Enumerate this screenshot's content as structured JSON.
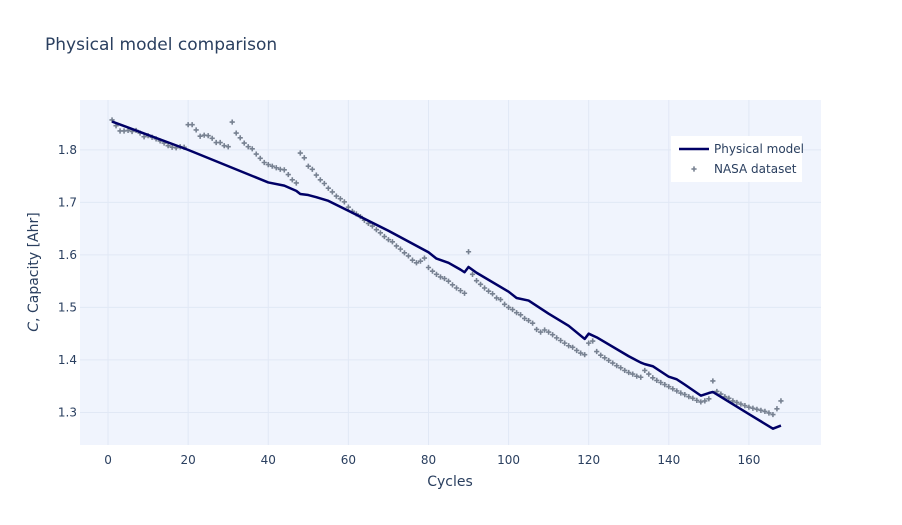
{
  "chart_data": {
    "type": "line",
    "title": "Physical model comparison",
    "xlabel": "Cycles",
    "ylabel_italic": "C",
    "ylabel_rest": ", Capacity [Ahr]",
    "xlim": [
      -7,
      178
    ],
    "ylim": [
      1.238,
      1.895
    ],
    "xticks": [
      0,
      20,
      40,
      60,
      80,
      100,
      120,
      140,
      160
    ],
    "yticks": [
      1.3,
      1.4,
      1.5,
      1.6,
      1.7,
      1.8
    ],
    "ytick_labels": [
      "1.3",
      "1.4",
      "1.5",
      "1.6",
      "1.7",
      "1.8"
    ],
    "colors": {
      "model": "#000066",
      "nasa": "#778191",
      "plot_bg": "#f0f4fd",
      "grid": "#e1e8f5"
    },
    "series": [
      {
        "name": "Physical model",
        "mode": "line",
        "x": [
          1,
          20,
          40,
          44,
          47,
          48,
          50,
          52,
          55,
          60,
          70,
          80,
          82,
          85,
          88,
          89,
          90,
          92,
          100,
          102,
          105,
          110,
          115,
          119,
          120,
          122,
          130,
          133,
          134,
          136,
          140,
          142,
          144,
          148,
          150,
          151,
          160,
          166,
          168
        ],
        "y": [
          1.854,
          1.8,
          1.738,
          1.732,
          1.722,
          1.716,
          1.714,
          1.71,
          1.703,
          1.684,
          1.646,
          1.605,
          1.593,
          1.585,
          1.572,
          1.567,
          1.577,
          1.566,
          1.53,
          1.518,
          1.513,
          1.488,
          1.465,
          1.44,
          1.45,
          1.443,
          1.407,
          1.395,
          1.392,
          1.388,
          1.368,
          1.363,
          1.353,
          1.332,
          1.337,
          1.339,
          1.297,
          1.269,
          1.275
        ]
      },
      {
        "name": "NASA dataset",
        "mode": "markers",
        "x": [
          1,
          2,
          3,
          4,
          5,
          6,
          7,
          8,
          9,
          10,
          11,
          12,
          13,
          14,
          15,
          16,
          17,
          18,
          19,
          20,
          21,
          22,
          23,
          24,
          25,
          26,
          27,
          28,
          29,
          30,
          31,
          32,
          33,
          34,
          35,
          36,
          37,
          38,
          39,
          40,
          41,
          42,
          43,
          44,
          45,
          46,
          47,
          48,
          49,
          50,
          51,
          52,
          53,
          54,
          55,
          56,
          57,
          58,
          59,
          60,
          61,
          62,
          63,
          64,
          65,
          66,
          67,
          68,
          69,
          70,
          71,
          72,
          73,
          74,
          75,
          76,
          77,
          78,
          79,
          80,
          81,
          82,
          83,
          84,
          85,
          86,
          87,
          88,
          89,
          90,
          91,
          92,
          93,
          94,
          95,
          96,
          97,
          98,
          99,
          100,
          101,
          102,
          103,
          104,
          105,
          106,
          107,
          108,
          109,
          110,
          111,
          112,
          113,
          114,
          115,
          116,
          117,
          118,
          119,
          120,
          121,
          122,
          123,
          124,
          125,
          126,
          127,
          128,
          129,
          130,
          131,
          132,
          133,
          134,
          135,
          136,
          137,
          138,
          139,
          140,
          141,
          142,
          143,
          144,
          145,
          146,
          147,
          148,
          149,
          150,
          151,
          152,
          153,
          154,
          155,
          156,
          157,
          158,
          159,
          160,
          161,
          162,
          163,
          164,
          165,
          166,
          167,
          168
        ],
        "y": [
          1.857,
          1.846,
          1.836,
          1.836,
          1.837,
          1.835,
          1.837,
          1.832,
          1.825,
          1.827,
          1.824,
          1.821,
          1.817,
          1.813,
          1.808,
          1.805,
          1.804,
          1.806,
          1.805,
          1.848,
          1.848,
          1.838,
          1.826,
          1.828,
          1.827,
          1.822,
          1.814,
          1.814,
          1.808,
          1.806,
          1.853,
          1.832,
          1.823,
          1.813,
          1.806,
          1.802,
          1.792,
          1.784,
          1.776,
          1.772,
          1.769,
          1.766,
          1.763,
          1.762,
          1.753,
          1.743,
          1.737,
          1.794,
          1.785,
          1.769,
          1.763,
          1.752,
          1.743,
          1.736,
          1.727,
          1.72,
          1.712,
          1.707,
          1.701,
          1.691,
          1.683,
          1.678,
          1.673,
          1.666,
          1.66,
          1.655,
          1.648,
          1.642,
          1.635,
          1.629,
          1.625,
          1.617,
          1.611,
          1.604,
          1.598,
          1.59,
          1.585,
          1.588,
          1.594,
          1.576,
          1.569,
          1.563,
          1.558,
          1.555,
          1.55,
          1.543,
          1.537,
          1.532,
          1.527,
          1.606,
          1.563,
          1.551,
          1.544,
          1.537,
          1.531,
          1.526,
          1.518,
          1.515,
          1.506,
          1.5,
          1.496,
          1.49,
          1.486,
          1.479,
          1.475,
          1.47,
          1.458,
          1.453,
          1.457,
          1.453,
          1.448,
          1.442,
          1.437,
          1.432,
          1.427,
          1.424,
          1.418,
          1.413,
          1.41,
          1.432,
          1.436,
          1.416,
          1.409,
          1.404,
          1.399,
          1.394,
          1.389,
          1.385,
          1.38,
          1.376,
          1.373,
          1.369,
          1.367,
          1.38,
          1.373,
          1.366,
          1.361,
          1.357,
          1.353,
          1.349,
          1.345,
          1.341,
          1.337,
          1.334,
          1.33,
          1.327,
          1.323,
          1.32,
          1.322,
          1.326,
          1.36,
          1.34,
          1.335,
          1.33,
          1.327,
          1.322,
          1.319,
          1.316,
          1.313,
          1.31,
          1.308,
          1.306,
          1.304,
          1.302,
          1.299,
          1.296,
          1.307,
          1.322
        ]
      }
    ],
    "legend": {
      "placement": "top-right",
      "entries": [
        "Physical model",
        "NASA dataset"
      ]
    }
  }
}
